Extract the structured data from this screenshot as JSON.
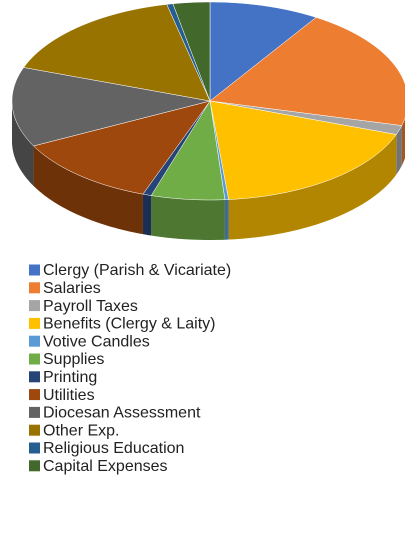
{
  "chart_data": {
    "type": "pie",
    "categories": [
      "Clergy (Parish & Vicariate)",
      "Salaries",
      "Payroll Taxes",
      "Benefits (Clergy & Laity)",
      "Votive Candles",
      "Supplies",
      "Printing",
      "Utilities",
      "Diocesan Assessment",
      "Other Exp.",
      "Religious Education",
      "Capital Expenses"
    ],
    "values": [
      9,
      20,
      1.5,
      18,
      0.3,
      6,
      0.7,
      12,
      13,
      16,
      0.5,
      3
    ],
    "colors": [
      "#4472c4",
      "#ed7d31",
      "#a5a5a5",
      "#ffc000",
      "#5b9bd5",
      "#70ad47",
      "#264478",
      "#9e480e",
      "#636363",
      "#997300",
      "#255e91",
      "#43682b"
    ]
  }
}
